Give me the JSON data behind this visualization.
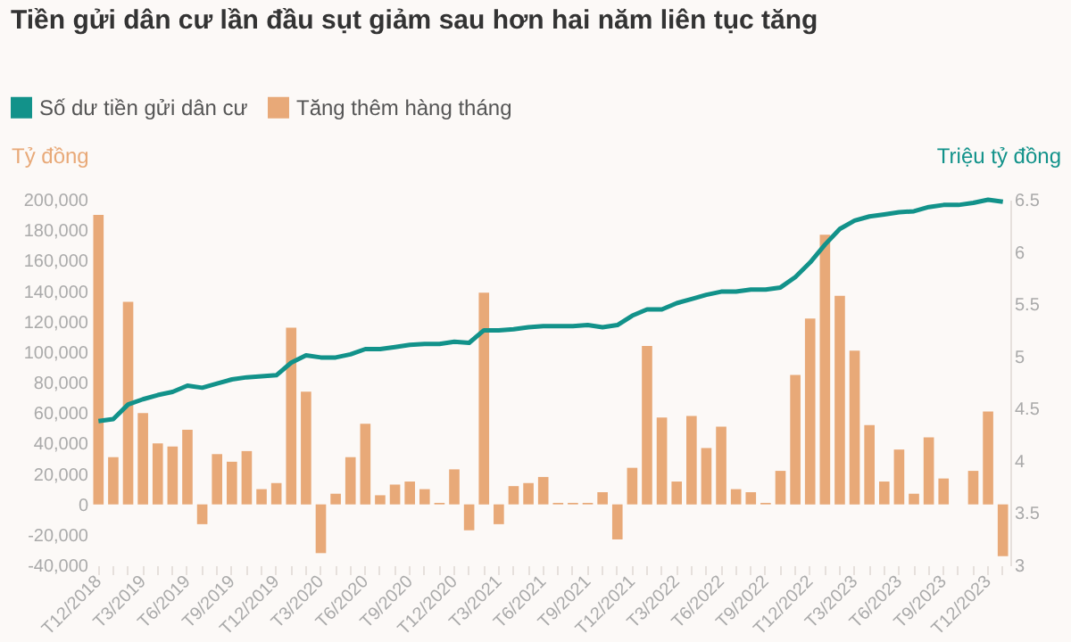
{
  "chart_data": {
    "type": "bar",
    "title": "Tiền gửi dân cư lần đầu sụt giảm sau hơn hai năm liên tục tăng",
    "ylabel": "Tỷ đồng",
    "y2label": "Triệu tỷ đồng",
    "categories": [
      "T12/2018",
      null,
      null,
      "T3/2019",
      null,
      null,
      "T6/2019",
      null,
      null,
      "T9/2019",
      null,
      null,
      "T12/2019",
      null,
      null,
      "T3/2020",
      null,
      null,
      "T6/2020",
      null,
      null,
      "T9/2020",
      null,
      null,
      "T12/2020",
      null,
      null,
      "T3/2021",
      null,
      null,
      "T6/2021",
      null,
      null,
      "T9/2021",
      null,
      null,
      "T12/2021",
      null,
      null,
      "T3/2022",
      null,
      null,
      "T6/2022",
      null,
      null,
      "T9/2022",
      null,
      null,
      "T12/2022",
      null,
      null,
      "T3/2023",
      null,
      null,
      "T6/2023",
      null,
      null,
      "T9/2023",
      null,
      null,
      "T12/2023",
      null
    ],
    "series": [
      {
        "name": "Số dư tiền gửi dân cư",
        "type": "line",
        "axis": "y2",
        "color": "#12928a",
        "values": [
          4.38,
          4.4,
          4.54,
          4.59,
          4.63,
          4.66,
          4.72,
          4.7,
          4.74,
          4.78,
          4.8,
          4.81,
          4.82,
          4.94,
          5.01,
          4.99,
          4.99,
          5.02,
          5.07,
          5.07,
          5.09,
          5.11,
          5.12,
          5.12,
          5.14,
          5.13,
          5.25,
          5.25,
          5.26,
          5.28,
          5.29,
          5.29,
          5.29,
          5.3,
          5.28,
          5.3,
          5.39,
          5.45,
          5.45,
          5.51,
          5.55,
          5.59,
          5.62,
          5.62,
          5.64,
          5.64,
          5.66,
          5.76,
          5.9,
          6.07,
          6.22,
          6.3,
          6.34,
          6.36,
          6.38,
          6.39,
          6.43,
          6.45,
          6.45,
          6.47,
          6.5,
          6.48
        ]
      },
      {
        "name": "Tăng thêm hàng tháng",
        "color": "#e8a978",
        "values": [
          190000,
          31000,
          133000,
          60000,
          40000,
          38000,
          49000,
          -13000,
          33000,
          28000,
          35000,
          10000,
          14000,
          116000,
          74000,
          -32000,
          7000,
          31000,
          53000,
          6000,
          13000,
          15000,
          10000,
          1000,
          23000,
          -17000,
          139000,
          -13000,
          12000,
          14000,
          18000,
          1000,
          1000,
          1000,
          8000,
          -23000,
          24000,
          104000,
          57000,
          15000,
          58000,
          37000,
          51000,
          10000,
          8000,
          1000,
          22000,
          85000,
          122000,
          177000,
          137000,
          101000,
          52000,
          15000,
          36000,
          7000,
          44000,
          17000,
          0,
          22000,
          61000,
          -34000
        ]
      }
    ],
    "ylim": [
      -40000,
      200000
    ],
    "yticks": [
      {
        "value": -40000,
        "label": "-40,000"
      },
      {
        "value": -20000,
        "label": "-20,000"
      },
      0,
      {
        "value": 20000,
        "label": "20,000"
      },
      {
        "value": 40000,
        "label": "40,000"
      },
      {
        "value": 60000,
        "label": "60,000"
      },
      {
        "value": 80000,
        "label": "80,000"
      },
      {
        "value": 100000,
        "label": "100,000"
      },
      {
        "value": 120000,
        "label": "120,000"
      },
      {
        "value": 140000,
        "label": "140,000"
      },
      {
        "value": 160000,
        "label": "160,000"
      },
      {
        "value": 180000,
        "label": "180,000"
      },
      {
        "value": 200000,
        "label": "200,000"
      }
    ],
    "y2lim": [
      3,
      6.5
    ],
    "y2ticks": [
      3,
      3.5,
      4,
      4.5,
      5,
      5.5,
      6,
      6.5
    ],
    "legend": "top left",
    "grid": false
  }
}
